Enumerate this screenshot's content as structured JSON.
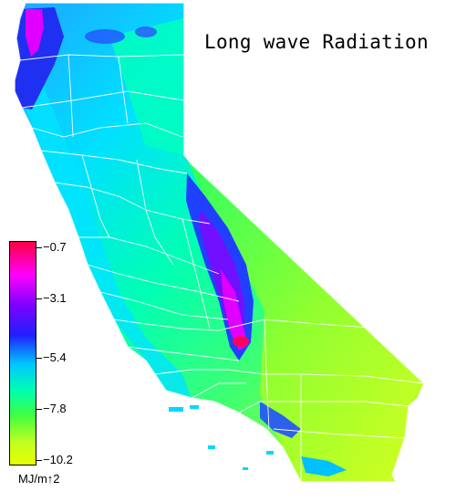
{
  "map": {
    "title": "Long wave Radiation",
    "region": "California",
    "colors": {
      "background": "#ffffff",
      "county_lines": "#ffffff",
      "scale": [
        "#ff0040",
        "#ff00ff",
        "#8000ff",
        "#2020ff",
        "#00c8ff",
        "#00ffb0",
        "#40ff40",
        "#c0ff20",
        "#e8ff00"
      ]
    }
  },
  "legend": {
    "units": "MJ/m↑2",
    "ticks": [
      "−0.7",
      "−3.1",
      "−5.4",
      "−7.8",
      "−10.2"
    ],
    "values": [
      -0.7,
      -3.1,
      -5.4,
      -7.8,
      -10.2
    ]
  }
}
